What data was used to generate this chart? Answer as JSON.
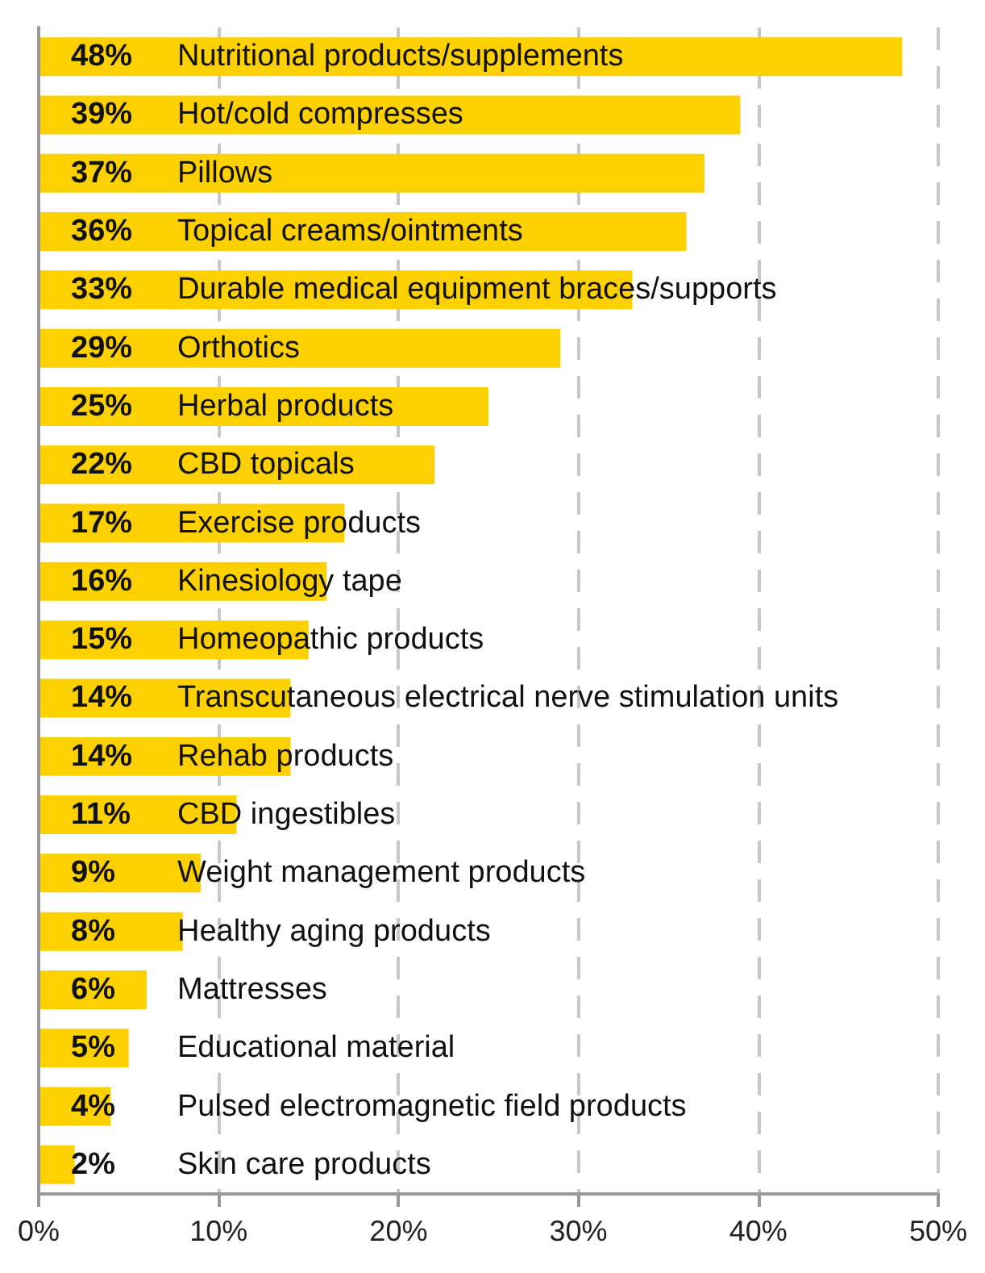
{
  "chart_data": {
    "type": "bar",
    "orientation": "horizontal",
    "categories": [
      "Nutritional products/supplements",
      "Hot/cold compresses",
      "Pillows",
      "Topical creams/ointments",
      "Durable medical equipment braces/supports",
      "Orthotics",
      "Herbal products",
      "CBD topicals",
      "Exercise products",
      "Kinesiology tape",
      "Homeopathic products",
      "Transcutaneous electrical nerve stimulation units",
      "Rehab products",
      "CBD ingestibles",
      "Weight management products",
      "Healthy aging products",
      "Mattresses",
      "Educational material",
      "Pulsed electromagnetic field products",
      "Skin care products"
    ],
    "values": [
      48,
      39,
      37,
      36,
      33,
      29,
      25,
      22,
      17,
      16,
      15,
      14,
      14,
      11,
      9,
      8,
      6,
      5,
      4,
      2
    ],
    "value_labels": [
      "48%",
      "39%",
      "37%",
      "36%",
      "33%",
      "29%",
      "25%",
      "22%",
      "17%",
      "16%",
      "15%",
      "14%",
      "14%",
      "11%",
      "9%",
      "8%",
      "6%",
      "5%",
      "4%",
      "2%"
    ],
    "color": "#fdd000",
    "xlim": [
      0,
      50
    ],
    "xticks": [
      {
        "value": 0,
        "label": "0%"
      },
      {
        "value": 10,
        "label": "10%"
      },
      {
        "value": 20,
        "label": "20%"
      },
      {
        "value": 30,
        "label": "30%"
      },
      {
        "value": 40,
        "label": "40%"
      },
      {
        "value": 50,
        "label": "50%"
      }
    ],
    "grid": "x"
  }
}
